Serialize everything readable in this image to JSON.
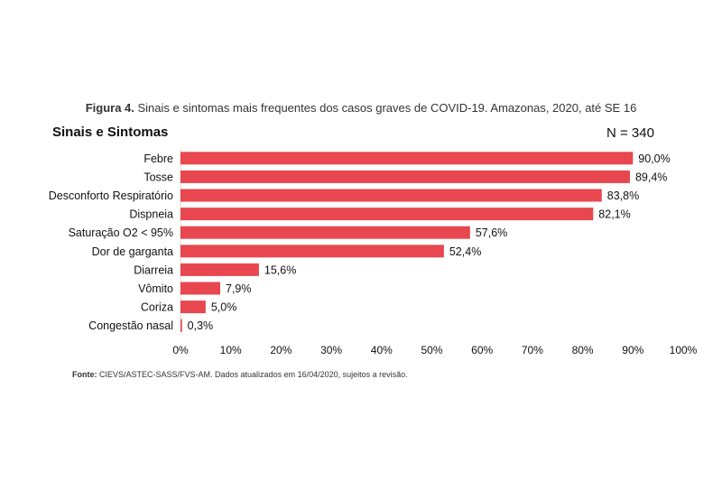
{
  "figure": {
    "title_prefix": "Figura 4.",
    "title_text": " Sinais e sintomas mais frequentes dos casos graves de COVID-19. Amazonas, 2020, até SE 16",
    "source_prefix": "Fonte:",
    "source_text": " CIEVS/ASTEC-SASS/FVS-AM. Dados atualizados em 16/04/2020, sujeitos a revisão."
  },
  "chart_data": {
    "type": "bar",
    "orientation": "horizontal",
    "row_heading": "Sinais e Sintomas",
    "n_label": "N = 340",
    "categories": [
      "Febre",
      "Tosse",
      "Desconforto Respiratório",
      "Dispneia",
      "Saturação O2 < 95%",
      "Dor de garganta",
      "Diarreia",
      "Vômito",
      "Coriza",
      "Congestão nasal"
    ],
    "values": [
      90.0,
      89.4,
      83.8,
      82.1,
      57.6,
      52.4,
      15.6,
      7.9,
      5.0,
      0.3
    ],
    "value_labels": [
      "90,0%",
      "89,4%",
      "83,8%",
      "82,1%",
      "57,6%",
      "52,4%",
      "15,6%",
      "7,9%",
      "5,0%",
      "0,3%"
    ],
    "x_ticks": [
      "0%",
      "10%",
      "20%",
      "30%",
      "40%",
      "50%",
      "60%",
      "70%",
      "80%",
      "90%",
      "100%"
    ],
    "xlim": [
      0,
      100
    ],
    "grid": false,
    "bar_color": "#e8474f"
  }
}
